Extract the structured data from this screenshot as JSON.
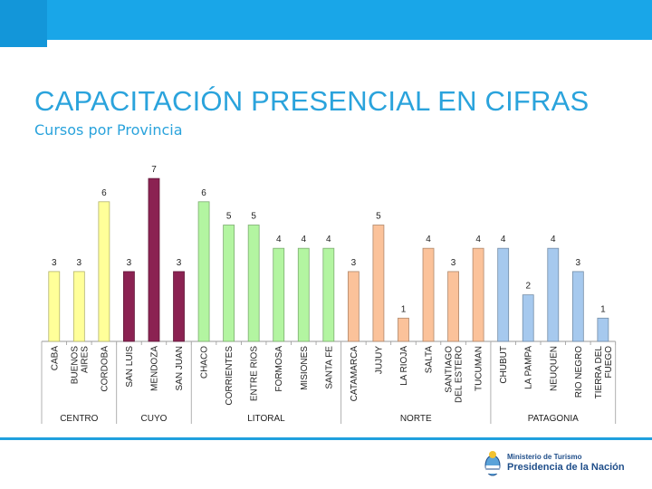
{
  "header": {
    "title": "CAPACITACIÓN PRESENCIAL EN CIFRAS",
    "subtitle": "Cursos por Provincia"
  },
  "chart_data": {
    "type": "bar",
    "title": "Cursos por Provincia",
    "xlabel": "",
    "ylabel": "",
    "ylim": [
      0,
      7
    ],
    "categories": [
      "CABA",
      "BUENOS AIRES",
      "CORDOBA",
      "SAN LUIS",
      "MENDOZA",
      "SAN JUAN",
      "CHACO",
      "CORRIENTES",
      "ENTRE RIOS",
      "FORMOSA",
      "MISIONES",
      "SANTA FE",
      "CATAMARCA",
      "JUJUY",
      "LA RIOJA",
      "SALTA",
      "SANTIAGO DEL ESTERO",
      "TUCUMAN",
      "CHUBUT",
      "LA PAMPA",
      "NEUQUEN",
      "RIO NEGRO",
      "TIERRA DEL FUEGO"
    ],
    "values": [
      3,
      3,
      6,
      3,
      7,
      3,
      6,
      5,
      5,
      4,
      4,
      4,
      3,
      5,
      1,
      4,
      3,
      4,
      4,
      2,
      4,
      3,
      1
    ],
    "groups": [
      {
        "name": "CENTRO",
        "count": 3,
        "color": "#ffff99"
      },
      {
        "name": "CUYO",
        "count": 3,
        "color": "#8b2252"
      },
      {
        "name": "LITORAL",
        "count": 6,
        "color": "#b3f5a1"
      },
      {
        "name": "NORTE",
        "count": 6,
        "color": "#fbc29a"
      },
      {
        "name": "PATAGONIA",
        "count": 5,
        "color": "#a6c9ee"
      }
    ]
  },
  "footer": {
    "logo_line1": "Ministerio de Turismo",
    "logo_line2": "Presidencia de la Nación"
  }
}
